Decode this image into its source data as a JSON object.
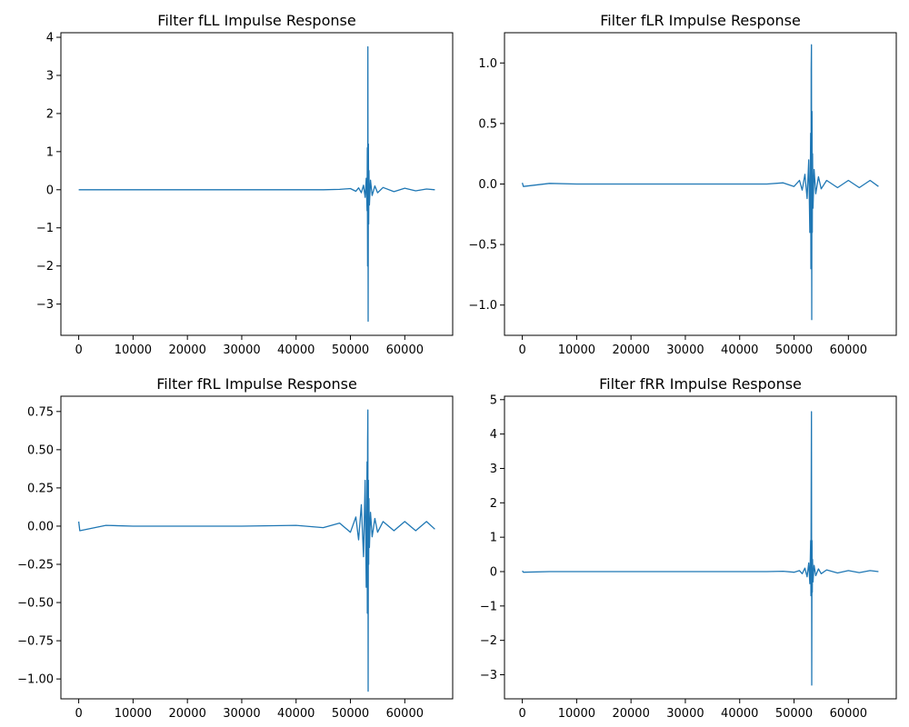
{
  "chart_data": [
    {
      "type": "line",
      "title": "Filter fLL Impulse Response",
      "xlim": [
        -3277,
        68813
      ],
      "ylim": [
        -3.82,
        4.12
      ],
      "xticks": [
        0,
        10000,
        20000,
        30000,
        40000,
        50000,
        60000
      ],
      "xtick_labels": [
        "0",
        "10000",
        "20000",
        "30000",
        "40000",
        "50000",
        "60000"
      ],
      "yticks": [
        -3,
        -2,
        -1,
        0,
        1,
        2,
        3,
        4
      ],
      "ytick_labels": [
        "−3",
        "−2",
        "−1",
        "0",
        "1",
        "2",
        "3",
        "4"
      ],
      "series": [
        {
          "color": "#1f77b4",
          "x": [
            0,
            5000,
            10000,
            20000,
            30000,
            40000,
            45000,
            48000,
            50000,
            51000,
            51500,
            52000,
            52400,
            52700,
            52900,
            53050,
            53100,
            53150,
            53200,
            53250,
            53300,
            53350,
            53400,
            53500,
            53700,
            54000,
            54500,
            55000,
            56000,
            58000,
            60000,
            62000,
            64000,
            65535
          ],
          "y": [
            0,
            0,
            0,
            0,
            0,
            0,
            0,
            0.01,
            0.03,
            -0.04,
            0.05,
            -0.08,
            0.12,
            -0.2,
            0.3,
            -0.55,
            1.1,
            -2.0,
            3.75,
            -3.45,
            1.2,
            -0.9,
            0.5,
            -0.4,
            0.25,
            -0.15,
            0.1,
            -0.08,
            0.06,
            -0.05,
            0.04,
            -0.03,
            0.02,
            0
          ]
        }
      ],
      "grid": false
    },
    {
      "type": "line",
      "title": "Filter fLR Impulse Response",
      "xlim": [
        -3277,
        68813
      ],
      "ylim": [
        -1.25,
        1.25
      ],
      "xticks": [
        0,
        10000,
        20000,
        30000,
        40000,
        50000,
        60000
      ],
      "xtick_labels": [
        "0",
        "10000",
        "20000",
        "30000",
        "40000",
        "50000",
        "60000"
      ],
      "yticks": [
        -1.0,
        -0.5,
        0.0,
        0.5,
        1.0
      ],
      "ytick_labels": [
        "−1.0",
        "−0.5",
        "0.0",
        "0.5",
        "1.0"
      ],
      "series": [
        {
          "color": "#1f77b4",
          "x": [
            0,
            200,
            5000,
            10000,
            20000,
            30000,
            40000,
            45000,
            48000,
            50000,
            51000,
            51500,
            52000,
            52400,
            52700,
            52900,
            53050,
            53100,
            53150,
            53200,
            53250,
            53300,
            53350,
            53400,
            53500,
            53700,
            54000,
            54500,
            55000,
            56000,
            58000,
            60000,
            62000,
            64000,
            65535
          ],
          "y": [
            0.01,
            -0.02,
            0.005,
            0,
            0,
            0,
            0,
            0,
            0.01,
            -0.02,
            0.03,
            -0.05,
            0.08,
            -0.12,
            0.2,
            -0.4,
            0.42,
            -0.7,
            0.95,
            1.15,
            -1.12,
            0.6,
            -0.4,
            0.25,
            -0.2,
            0.12,
            -0.08,
            0.06,
            -0.04,
            0.03,
            -0.03,
            0.03,
            -0.03,
            0.03,
            -0.02
          ]
        }
      ],
      "grid": false
    },
    {
      "type": "line",
      "title": "Filter fRL Impulse Response",
      "xlim": [
        -3277,
        68813
      ],
      "ylim": [
        -1.13,
        0.85
      ],
      "xticks": [
        0,
        10000,
        20000,
        30000,
        40000,
        50000,
        60000
      ],
      "xtick_labels": [
        "0",
        "10000",
        "20000",
        "30000",
        "40000",
        "50000",
        "60000"
      ],
      "yticks": [
        -1.0,
        -0.75,
        -0.5,
        -0.25,
        0.0,
        0.25,
        0.5,
        0.75
      ],
      "ytick_labels": [
        "−1.00",
        "−0.75",
        "−0.50",
        "−0.25",
        "0.00",
        "0.25",
        "0.50",
        "0.75"
      ],
      "series": [
        {
          "color": "#1f77b4",
          "x": [
            0,
            200,
            5000,
            10000,
            20000,
            30000,
            40000,
            45000,
            48000,
            50000,
            51000,
            51500,
            52000,
            52400,
            52700,
            52900,
            53050,
            53100,
            53150,
            53200,
            53250,
            53300,
            53350,
            53400,
            53500,
            53700,
            54000,
            54500,
            55000,
            56000,
            58000,
            60000,
            62000,
            64000,
            65535
          ],
          "y": [
            0.03,
            -0.03,
            0.005,
            0,
            0,
            0,
            0.005,
            -0.01,
            0.02,
            -0.04,
            0.06,
            -0.09,
            0.14,
            -0.2,
            0.3,
            -0.4,
            0.42,
            -0.57,
            0.55,
            0.76,
            -1.08,
            0.3,
            -0.25,
            0.18,
            -0.14,
            0.09,
            -0.07,
            0.05,
            -0.04,
            0.03,
            -0.03,
            0.03,
            -0.03,
            0.03,
            -0.02
          ]
        }
      ],
      "grid": false
    },
    {
      "type": "line",
      "title": "Filter fRR Impulse Response",
      "xlim": [
        -3277,
        68813
      ],
      "ylim": [
        -3.7,
        5.1
      ],
      "xticks": [
        0,
        10000,
        20000,
        30000,
        40000,
        50000,
        60000
      ],
      "xtick_labels": [
        "0",
        "10000",
        "20000",
        "30000",
        "40000",
        "50000",
        "60000"
      ],
      "yticks": [
        -3,
        -2,
        -1,
        0,
        1,
        2,
        3,
        4,
        5
      ],
      "ytick_labels": [
        "−3",
        "−2",
        "−1",
        "0",
        "1",
        "2",
        "3",
        "4",
        "5"
      ],
      "series": [
        {
          "color": "#1f77b4",
          "x": [
            0,
            200,
            5000,
            10000,
            20000,
            30000,
            40000,
            45000,
            48000,
            50000,
            51000,
            51500,
            52000,
            52400,
            52700,
            52900,
            53050,
            53100,
            53150,
            53200,
            53250,
            53300,
            53350,
            53400,
            53500,
            53700,
            54000,
            54500,
            55000,
            56000,
            58000,
            60000,
            62000,
            64000,
            65535
          ],
          "y": [
            0.02,
            -0.02,
            0,
            0,
            0,
            0,
            0,
            0,
            0.01,
            -0.02,
            0.03,
            -0.06,
            0.1,
            -0.15,
            0.25,
            -0.35,
            0.9,
            -0.7,
            2.3,
            4.65,
            -3.3,
            0.9,
            -0.6,
            0.35,
            -0.3,
            0.18,
            -0.12,
            0.08,
            -0.06,
            0.05,
            -0.04,
            0.03,
            -0.03,
            0.03,
            0
          ]
        }
      ],
      "grid": false
    }
  ]
}
